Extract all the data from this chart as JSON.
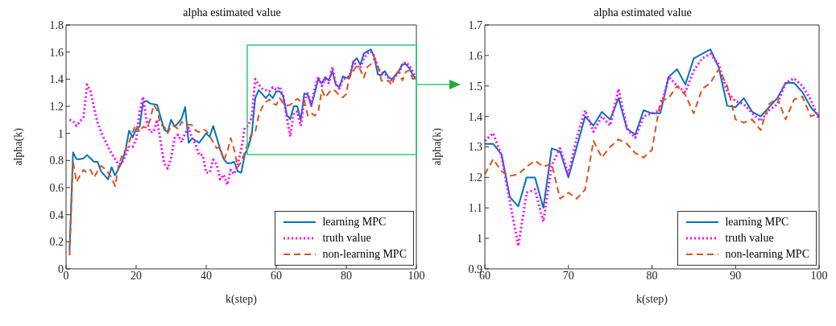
{
  "chart_data": [
    {
      "type": "line",
      "title": "alpha estimated value",
      "xlabel": "k(step)",
      "ylabel": "alpha(k)",
      "legend": "bottom right",
      "x": [
        1,
        2,
        3,
        4,
        5,
        6,
        7,
        8,
        9,
        10,
        11,
        12,
        13,
        14,
        15,
        16,
        17,
        18,
        19,
        20,
        21,
        22,
        23,
        24,
        25,
        26,
        27,
        28,
        29,
        30,
        31,
        32,
        33,
        34,
        35,
        36,
        37,
        38,
        39,
        40,
        41,
        42,
        43,
        44,
        45,
        46,
        47,
        48,
        49,
        50,
        51,
        52,
        53,
        54,
        55,
        56,
        57,
        58,
        59,
        60,
        61,
        62,
        63,
        64,
        65,
        66,
        67,
        68,
        69,
        70,
        71,
        72,
        73,
        74,
        75,
        76,
        77,
        78,
        79,
        80,
        81,
        82,
        83,
        84,
        85,
        86,
        87,
        88,
        89,
        90,
        91,
        92,
        93,
        94,
        95,
        96,
        97,
        98,
        99,
        100
      ],
      "xlim": [
        0,
        100
      ],
      "xticks": [
        0,
        20,
        40,
        60,
        80,
        100
      ],
      "ylim": [
        0,
        1.8
      ],
      "yticks": [
        0,
        0.2,
        0.4,
        0.6,
        0.8,
        1,
        1.2,
        1.4,
        1.6,
        1.8
      ],
      "series": [
        {
          "name": "learning MPC",
          "color": "#0072bd",
          "line_style": "solid",
          "values": [
            0.14,
            0.86,
            0.81,
            0.81,
            0.815,
            0.84,
            0.815,
            0.79,
            0.79,
            0.72,
            0.69,
            0.66,
            0.75,
            0.69,
            0.74,
            0.79,
            0.88,
            1.02,
            0.97,
            1.03,
            1.05,
            1.23,
            1.24,
            1.22,
            1.215,
            1.21,
            1.12,
            1.03,
            1.01,
            1.1,
            1.05,
            1.075,
            1.11,
            1.195,
            0.93,
            0.965,
            0.945,
            0.93,
            0.965,
            1.0,
            0.975,
            1.055,
            0.97,
            0.88,
            0.81,
            0.78,
            0.78,
            0.79,
            0.72,
            0.71,
            0.84,
            0.9,
            0.99,
            1.26,
            1.32,
            1.29,
            1.26,
            1.29,
            1.26,
            1.31,
            1.31,
            1.275,
            1.135,
            1.105,
            1.2,
            1.2,
            1.1,
            1.295,
            1.285,
            1.2,
            1.3,
            1.4,
            1.37,
            1.415,
            1.39,
            1.46,
            1.36,
            1.34,
            1.42,
            1.41,
            1.41,
            1.53,
            1.555,
            1.505,
            1.59,
            1.605,
            1.62,
            1.56,
            1.435,
            1.43,
            1.46,
            1.415,
            1.4,
            1.43,
            1.46,
            1.51,
            1.51,
            1.48,
            1.43,
            1.4
          ]
        },
        {
          "name": "truth value",
          "color": "#ff00ff",
          "line_style": "dotted",
          "values": [
            1.1,
            1.09,
            1.055,
            1.09,
            1.12,
            1.36,
            1.31,
            1.19,
            1.08,
            1.01,
            0.955,
            0.9,
            0.85,
            0.81,
            0.77,
            0.78,
            0.84,
            0.9,
            0.9,
            0.955,
            1.16,
            1.27,
            1.09,
            1.01,
            1.01,
            1.1,
            0.935,
            0.78,
            0.74,
            0.82,
            0.965,
            0.99,
            0.935,
            1.0,
            1.04,
            0.965,
            0.915,
            0.84,
            0.84,
            0.71,
            0.71,
            0.805,
            0.77,
            0.66,
            0.695,
            0.62,
            0.73,
            0.7,
            0.77,
            0.88,
            1.04,
            1.055,
            1.12,
            1.4,
            1.36,
            1.33,
            1.32,
            1.31,
            1.34,
            1.32,
            1.345,
            1.27,
            1.12,
            0.975,
            1.15,
            1.16,
            1.055,
            1.24,
            1.295,
            1.21,
            1.33,
            1.42,
            1.35,
            1.4,
            1.37,
            1.49,
            1.36,
            1.33,
            1.4,
            1.41,
            1.42,
            1.53,
            1.5,
            1.48,
            1.55,
            1.59,
            1.605,
            1.57,
            1.48,
            1.45,
            1.44,
            1.41,
            1.385,
            1.42,
            1.44,
            1.51,
            1.525,
            1.5,
            1.455,
            1.39
          ]
        },
        {
          "name": "non-learning MPC",
          "color": "#d95319",
          "line_style": "dashed",
          "values": [
            0.1,
            0.79,
            0.64,
            0.69,
            0.73,
            0.71,
            0.73,
            0.675,
            0.72,
            0.76,
            0.74,
            0.71,
            0.675,
            0.61,
            0.76,
            0.84,
            0.88,
            0.935,
            1.01,
            1.065,
            1.01,
            1.05,
            1.04,
            1.1,
            1.21,
            1.17,
            1.065,
            1.05,
            1.0,
            1.055,
            1.055,
            1.03,
            1.085,
            1.065,
            1.065,
            1.06,
            1.02,
            1.01,
            1.03,
            1.02,
            0.98,
            0.935,
            0.89,
            0.9,
            0.8,
            0.86,
            0.965,
            0.88,
            0.75,
            0.79,
            0.86,
            0.935,
            1.0,
            1.01,
            1.135,
            1.195,
            1.23,
            1.25,
            1.22,
            1.21,
            1.26,
            1.22,
            1.205,
            1.21,
            1.235,
            1.255,
            1.235,
            1.245,
            1.13,
            1.15,
            1.13,
            1.16,
            1.32,
            1.265,
            1.3,
            1.325,
            1.31,
            1.28,
            1.265,
            1.29,
            1.45,
            1.46,
            1.5,
            1.47,
            1.41,
            1.49,
            1.51,
            1.555,
            1.5,
            1.39,
            1.38,
            1.39,
            1.355,
            1.44,
            1.46,
            1.39,
            1.455,
            1.465,
            1.4,
            1.41
          ]
        }
      ]
    },
    {
      "type": "line",
      "title": "alpha estimated value",
      "xlabel": "k(step)",
      "ylabel": "alpha(k)",
      "legend": "bottom right",
      "x": [
        60,
        61,
        62,
        63,
        64,
        65,
        66,
        67,
        68,
        69,
        70,
        71,
        72,
        73,
        74,
        75,
        76,
        77,
        78,
        79,
        80,
        81,
        82,
        83,
        84,
        85,
        86,
        87,
        88,
        89,
        90,
        91,
        92,
        93,
        94,
        95,
        96,
        97,
        98,
        99,
        100
      ],
      "xlim": [
        60,
        100
      ],
      "xticks": [
        60,
        70,
        80,
        90,
        100
      ],
      "ylim": [
        0.9,
        1.7
      ],
      "yticks": [
        0.9,
        1,
        1.1,
        1.2,
        1.3,
        1.4,
        1.5,
        1.6,
        1.7
      ],
      "series": [
        {
          "name": "learning MPC",
          "color": "#0072bd",
          "line_style": "solid",
          "values": [
            1.31,
            1.31,
            1.275,
            1.135,
            1.105,
            1.2,
            1.2,
            1.1,
            1.295,
            1.285,
            1.2,
            1.3,
            1.4,
            1.37,
            1.415,
            1.39,
            1.46,
            1.36,
            1.34,
            1.42,
            1.41,
            1.41,
            1.53,
            1.555,
            1.505,
            1.59,
            1.605,
            1.62,
            1.56,
            1.435,
            1.43,
            1.46,
            1.415,
            1.4,
            1.43,
            1.46,
            1.51,
            1.51,
            1.48,
            1.43,
            1.4
          ]
        },
        {
          "name": "truth value",
          "color": "#ff00ff",
          "line_style": "dotted",
          "values": [
            1.32,
            1.345,
            1.27,
            1.12,
            0.975,
            1.15,
            1.16,
            1.055,
            1.24,
            1.295,
            1.21,
            1.33,
            1.42,
            1.35,
            1.4,
            1.37,
            1.49,
            1.36,
            1.33,
            1.4,
            1.41,
            1.42,
            1.53,
            1.5,
            1.48,
            1.55,
            1.59,
            1.605,
            1.57,
            1.48,
            1.45,
            1.44,
            1.41,
            1.385,
            1.42,
            1.44,
            1.51,
            1.525,
            1.5,
            1.455,
            1.39
          ]
        },
        {
          "name": "non-learning MPC",
          "color": "#d95319",
          "line_style": "dashed",
          "values": [
            1.21,
            1.26,
            1.22,
            1.205,
            1.21,
            1.235,
            1.255,
            1.235,
            1.245,
            1.13,
            1.15,
            1.13,
            1.16,
            1.32,
            1.265,
            1.3,
            1.325,
            1.31,
            1.28,
            1.265,
            1.29,
            1.45,
            1.46,
            1.5,
            1.47,
            1.41,
            1.49,
            1.51,
            1.555,
            1.5,
            1.39,
            1.38,
            1.39,
            1.355,
            1.44,
            1.46,
            1.39,
            1.455,
            1.465,
            1.4,
            1.41
          ]
        }
      ]
    }
  ]
}
